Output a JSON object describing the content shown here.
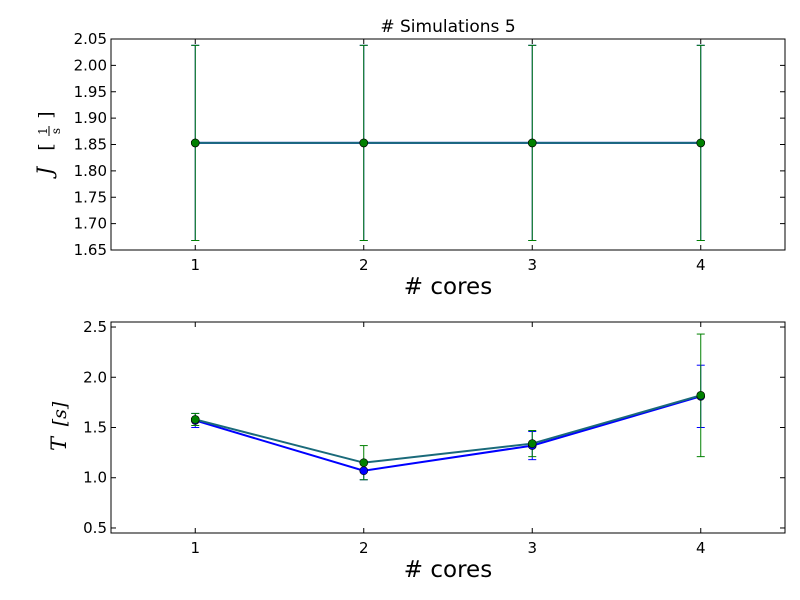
{
  "chart_data": [
    {
      "type": "line",
      "title": "# Simulations 5",
      "xlabel": "# cores",
      "ylabel": "J",
      "ylabel_unit_open": "[",
      "ylabel_unit_num": "1",
      "ylabel_unit_den": "s",
      "ylabel_unit_close": "]",
      "x": [
        1,
        2,
        3,
        4
      ],
      "xlim": [
        0.5,
        4.5
      ],
      "ylim": [
        1.65,
        2.05
      ],
      "xticks": [
        "1",
        "2",
        "3",
        "4"
      ],
      "yticks": [
        "1.65",
        "1.70",
        "1.75",
        "1.80",
        "1.85",
        "1.90",
        "1.95",
        "2.00",
        "2.05"
      ],
      "grid": false,
      "series": [
        {
          "color": "#0000ff",
          "marker_color": "#0000ff",
          "values": [
            1.853,
            1.853,
            1.853,
            1.853
          ],
          "errors": [
            0.185,
            0.185,
            0.185,
            0.185
          ]
        },
        {
          "color": "#008000",
          "line_color": "#1a6a7a",
          "marker_color": "#008000",
          "values": [
            1.853,
            1.853,
            1.853,
            1.853
          ],
          "errors": [
            0.185,
            0.185,
            0.185,
            0.185
          ]
        }
      ]
    },
    {
      "type": "line",
      "title": "",
      "xlabel": "# cores",
      "ylabel": "T",
      "ylabel_unit": "[s]",
      "x": [
        1,
        2,
        3,
        4
      ],
      "xlim": [
        0.5,
        4.5
      ],
      "ylim": [
        0.45,
        2.55
      ],
      "xticks": [
        "1",
        "2",
        "3",
        "4"
      ],
      "yticks": [
        "0.5",
        "1.0",
        "1.5",
        "2.0",
        "2.5"
      ],
      "grid": false,
      "series": [
        {
          "color": "#0000ff",
          "marker_color": "#0000ff",
          "values": [
            1.57,
            1.07,
            1.32,
            1.81
          ],
          "errors": [
            0.07,
            0.09,
            0.14,
            0.31
          ]
        },
        {
          "color": "#008000",
          "line_color": "#1a6a7a",
          "marker_color": "#008000",
          "values": [
            1.58,
            1.15,
            1.34,
            1.82
          ],
          "errors": [
            0.06,
            0.17,
            0.13,
            0.61
          ]
        }
      ]
    }
  ]
}
